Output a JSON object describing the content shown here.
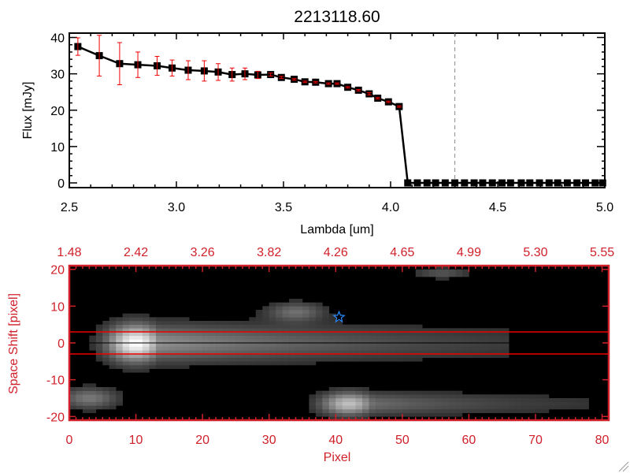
{
  "chart_data": [
    {
      "type": "line",
      "title": "2213118.60",
      "xlabel": "Lambda [um]",
      "ylabel": "Flux [mJy]",
      "xlim": [
        2.5,
        5.0
      ],
      "ylim": [
        -1.3,
        41.2
      ],
      "xticks": [
        "2.5",
        "3.0",
        "3.5",
        "4.0",
        "4.5",
        "5.0"
      ],
      "xtick_values": [
        2.5,
        3.0,
        3.5,
        4.0,
        4.5,
        5.0
      ],
      "yticks": [
        "0",
        "10",
        "20",
        "30",
        "40"
      ],
      "ytick_values": [
        0,
        10,
        20,
        30,
        40
      ],
      "marker_line_lambda": 4.3,
      "series": [
        {
          "name": "flux",
          "x": [
            2.54,
            2.64,
            2.735,
            2.82,
            2.91,
            2.98,
            3.055,
            3.13,
            3.195,
            3.26,
            3.32,
            3.38,
            3.44,
            3.49,
            3.55,
            3.6,
            3.65,
            3.71,
            3.75,
            3.8,
            3.85,
            3.9,
            3.94,
            3.99,
            4.04,
            4.08,
            4.125,
            4.17,
            4.21,
            4.255,
            4.3,
            4.345,
            4.39,
            4.43,
            4.475,
            4.52,
            4.56,
            4.61,
            4.65,
            4.695,
            4.74,
            4.78,
            4.825,
            4.87,
            4.91,
            4.955,
            4.99
          ],
          "y": [
            37.5,
            35.0,
            32.8,
            32.5,
            32.2,
            31.6,
            31.0,
            30.8,
            30.5,
            29.8,
            30.0,
            29.7,
            29.8,
            29.0,
            28.5,
            27.8,
            27.7,
            27.3,
            27.3,
            26.3,
            25.5,
            24.5,
            23.3,
            22.3,
            21.0,
            0,
            0,
            0,
            0,
            0,
            0,
            0,
            0,
            0,
            0,
            0,
            0,
            0,
            0,
            0,
            0,
            0,
            0,
            0,
            0,
            0,
            0
          ],
          "err": [
            2.4,
            5.6,
            5.8,
            3.5,
            2.6,
            2.2,
            2.6,
            2.8,
            2.3,
            1.8,
            1.6,
            1.0,
            0.4,
            0.3,
            0.2,
            0.2,
            0.2,
            0.2,
            0.2,
            0.2,
            0.2,
            0.3,
            0.2,
            0.2,
            0.2,
            0,
            0,
            0,
            0,
            0,
            0,
            0,
            0,
            0,
            0,
            0,
            0,
            0,
            0,
            0,
            0,
            0,
            0,
            0,
            0,
            0,
            0
          ]
        }
      ]
    },
    {
      "type": "heatmap",
      "xlabel": "Pixel",
      "ylabel": "Space Shift [pixel]",
      "xlim": [
        0,
        81
      ],
      "ylim": [
        -21,
        21
      ],
      "xticks": [
        "0",
        "10",
        "20",
        "30",
        "40",
        "50",
        "60",
        "70",
        "80"
      ],
      "xtick_values": [
        0,
        10,
        20,
        30,
        40,
        50,
        60,
        70,
        80
      ],
      "top_xticks": [
        "1.48",
        "2.42",
        "3.26",
        "3.82",
        "4.26",
        "4.65",
        "4.99",
        "5.30",
        "5.55"
      ],
      "yticks": [
        "20",
        "10",
        "0",
        "-10",
        "-20"
      ],
      "ytick_values": [
        20,
        10,
        0,
        -10,
        -20
      ],
      "aperture": [
        -3,
        3
      ],
      "star": {
        "pixel": 40.5,
        "shift": 7
      },
      "sources": [
        {
          "pixel": 10,
          "shift": 0,
          "peak": 1.0,
          "tail_to": 66,
          "width": 3.5
        },
        {
          "pixel": 42,
          "shift": -16.5,
          "peak": 0.72,
          "tail_to": 78,
          "width": 2.2
        },
        {
          "pixel": 3,
          "shift": -15,
          "peak": 0.4,
          "tail_to": 10,
          "width": 2
        },
        {
          "pixel": 34,
          "shift": 8.5,
          "peak": 0.35,
          "tail_to": 41,
          "width": 1.8
        },
        {
          "pixel": 56,
          "shift": 19,
          "peak": 0.25,
          "tail_to": 58,
          "width": 1
        }
      ]
    }
  ]
}
